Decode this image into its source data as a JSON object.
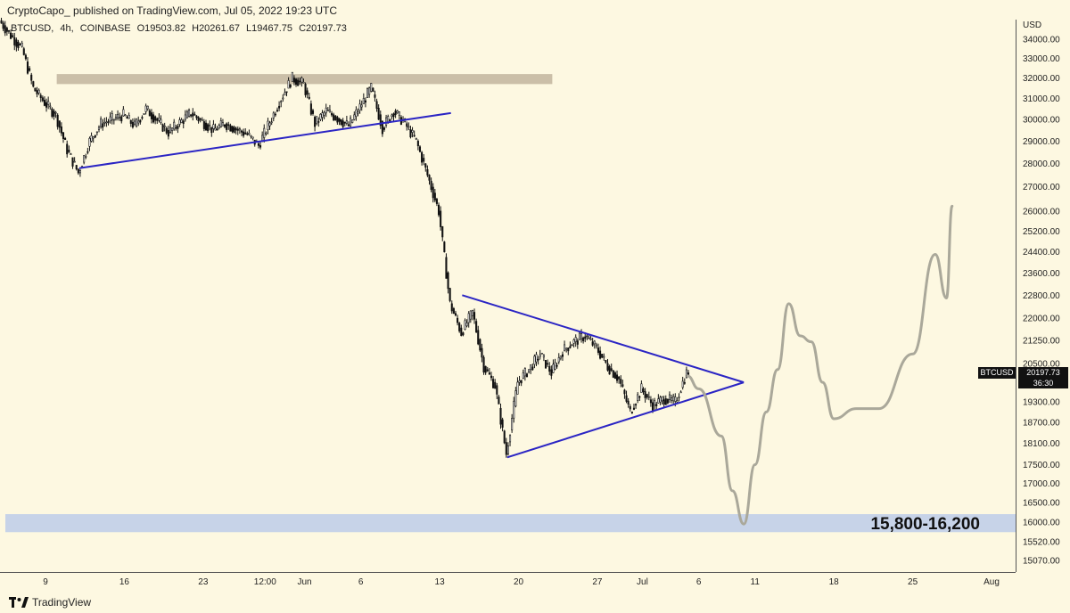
{
  "header": {
    "published": "CryptoCapo_ published on TradingView.com, Jul 05, 2022 19:23 UTC"
  },
  "ohlc": {
    "symbol": "BTCUSD,",
    "interval": "4h,",
    "exchange": "COINBASE",
    "open": "O19503.82",
    "high": "H20261.67",
    "low": "L19467.75",
    "close": "C20197.73"
  },
  "footer": {
    "brand": "TradingView"
  },
  "price_tag": {
    "symbol": "BTCUSD",
    "price": "20197.73",
    "countdown": "36:30"
  },
  "colors": {
    "background": "#fdf8e1",
    "candle": "#111111",
    "trendline": "#2b25c4",
    "resistance_zone": "#cbbfa8",
    "support_zone": "#c7d3e8",
    "projection": "#aaa89a"
  },
  "chart_data": {
    "type": "candlestick",
    "symbol": "BTCUSD",
    "interval": "4h",
    "exchange": "COINBASE",
    "ylabel": "USD",
    "y_scale": "log",
    "ylim": [
      14700,
      35200
    ],
    "y_ticks": [
      34000,
      33000,
      32000,
      31000,
      30000,
      29000,
      28000,
      27000,
      26000,
      25200,
      24400,
      23600,
      22800,
      22000,
      21250,
      20500,
      19900,
      19300,
      18700,
      18100,
      17500,
      17000,
      16500,
      16000,
      15520,
      15070
    ],
    "x_ticks": [
      {
        "label": "9",
        "date": "2022-05-09"
      },
      {
        "label": "16",
        "date": "2022-05-16"
      },
      {
        "label": "23",
        "date": "2022-05-23"
      },
      {
        "label": "12:00",
        "date": "2022-05-28T12:00"
      },
      {
        "label": "Jun",
        "date": "2022-06-01"
      },
      {
        "label": "6",
        "date": "2022-06-06"
      },
      {
        "label": "13",
        "date": "2022-06-13"
      },
      {
        "label": "20",
        "date": "2022-06-20"
      },
      {
        "label": "27",
        "date": "2022-06-27"
      },
      {
        "label": "Jul",
        "date": "2022-07-01"
      },
      {
        "label": "6",
        "date": "2022-07-06"
      },
      {
        "label": "11",
        "date": "2022-07-11"
      },
      {
        "label": "18",
        "date": "2022-07-18"
      },
      {
        "label": "25",
        "date": "2022-07-25"
      },
      {
        "label": "Aug",
        "date": "2022-08-01"
      }
    ],
    "price_path": [
      {
        "date": "2022-05-05",
        "price": 35000
      },
      {
        "date": "2022-05-06",
        "price": 34200
      },
      {
        "date": "2022-05-07",
        "price": 33500
      },
      {
        "date": "2022-05-08",
        "price": 31500
      },
      {
        "date": "2022-05-09",
        "price": 30800
      },
      {
        "date": "2022-05-10",
        "price": 30200
      },
      {
        "date": "2022-05-11",
        "price": 28600
      },
      {
        "date": "2022-05-12",
        "price": 27600
      },
      {
        "date": "2022-05-13",
        "price": 29000
      },
      {
        "date": "2022-05-14",
        "price": 29800
      },
      {
        "date": "2022-05-16",
        "price": 30200
      },
      {
        "date": "2022-05-17",
        "price": 29700
      },
      {
        "date": "2022-05-18",
        "price": 30500
      },
      {
        "date": "2022-05-20",
        "price": 29400
      },
      {
        "date": "2022-05-22",
        "price": 30300
      },
      {
        "date": "2022-05-24",
        "price": 29500
      },
      {
        "date": "2022-05-25",
        "price": 29800
      },
      {
        "date": "2022-05-27",
        "price": 29300
      },
      {
        "date": "2022-05-28",
        "price": 28800
      },
      {
        "date": "2022-05-30",
        "price": 31000
      },
      {
        "date": "2022-05-31",
        "price": 32000
      },
      {
        "date": "2022-06-01",
        "price": 31700
      },
      {
        "date": "2022-06-02",
        "price": 29800
      },
      {
        "date": "2022-06-03",
        "price": 30400
      },
      {
        "date": "2022-06-05",
        "price": 29700
      },
      {
        "date": "2022-06-07",
        "price": 31500
      },
      {
        "date": "2022-06-08",
        "price": 29600
      },
      {
        "date": "2022-06-09",
        "price": 30400
      },
      {
        "date": "2022-06-10",
        "price": 29800
      },
      {
        "date": "2022-06-11",
        "price": 29000
      },
      {
        "date": "2022-06-12",
        "price": 27500
      },
      {
        "date": "2022-06-13",
        "price": 26000
      },
      {
        "date": "2022-06-14",
        "price": 22500
      },
      {
        "date": "2022-06-15",
        "price": 21500
      },
      {
        "date": "2022-06-16",
        "price": 22200
      },
      {
        "date": "2022-06-17",
        "price": 20400
      },
      {
        "date": "2022-06-18",
        "price": 19800
      },
      {
        "date": "2022-06-19",
        "price": 17800
      },
      {
        "date": "2022-06-20",
        "price": 19900
      },
      {
        "date": "2022-06-21",
        "price": 20300
      },
      {
        "date": "2022-06-22",
        "price": 20800
      },
      {
        "date": "2022-06-23",
        "price": 20200
      },
      {
        "date": "2022-06-24",
        "price": 20900
      },
      {
        "date": "2022-06-25",
        "price": 21200
      },
      {
        "date": "2022-06-26",
        "price": 21400
      },
      {
        "date": "2022-06-27",
        "price": 21000
      },
      {
        "date": "2022-06-28",
        "price": 20400
      },
      {
        "date": "2022-06-29",
        "price": 20000
      },
      {
        "date": "2022-06-30",
        "price": 19000
      },
      {
        "date": "2022-07-01",
        "price": 19700
      },
      {
        "date": "2022-07-02",
        "price": 19200
      },
      {
        "date": "2022-07-03",
        "price": 19400
      },
      {
        "date": "2022-07-04",
        "price": 19300
      },
      {
        "date": "2022-07-05",
        "price": 20197.73
      }
    ],
    "trendlines": [
      {
        "name": "rising trendline",
        "from": {
          "date": "2022-05-12",
          "price": 27800
        },
        "to": {
          "date": "2022-06-14",
          "price": 30300
        }
      },
      {
        "name": "triangle upper",
        "from": {
          "date": "2022-06-15",
          "price": 22800
        },
        "to": {
          "date": "2022-07-10",
          "price": 19900
        }
      },
      {
        "name": "triangle lower",
        "from": {
          "date": "2022-06-19",
          "price": 17700
        },
        "to": {
          "date": "2022-07-10",
          "price": 19900
        }
      }
    ],
    "zones": [
      {
        "name": "resistance",
        "start": "2022-05-10",
        "end": "2022-06-23",
        "low": 31700,
        "high": 32200
      },
      {
        "name": "support",
        "label": "15,800-16,200",
        "low": 15750,
        "high": 16200
      }
    ],
    "projection": [
      {
        "date": "2022-07-05",
        "price": 20100
      },
      {
        "date": "2022-07-06",
        "price": 19700
      },
      {
        "date": "2022-07-08",
        "price": 18300
      },
      {
        "date": "2022-07-09",
        "price": 16800
      },
      {
        "date": "2022-07-10",
        "price": 15950
      },
      {
        "date": "2022-07-11",
        "price": 17500
      },
      {
        "date": "2022-07-12",
        "price": 19000
      },
      {
        "date": "2022-07-13",
        "price": 20300
      },
      {
        "date": "2022-07-14",
        "price": 22500
      },
      {
        "date": "2022-07-15",
        "price": 21400
      },
      {
        "date": "2022-07-16",
        "price": 21200
      },
      {
        "date": "2022-07-17",
        "price": 19900
      },
      {
        "date": "2022-07-18",
        "price": 18800
      },
      {
        "date": "2022-07-20",
        "price": 19100
      },
      {
        "date": "2022-07-22",
        "price": 19100
      },
      {
        "date": "2022-07-25",
        "price": 20800
      },
      {
        "date": "2022-07-27",
        "price": 24300
      },
      {
        "date": "2022-07-28",
        "price": 22700
      },
      {
        "date": "2022-07-28T12:00",
        "price": 26200
      }
    ],
    "last_price": 20197.73
  }
}
